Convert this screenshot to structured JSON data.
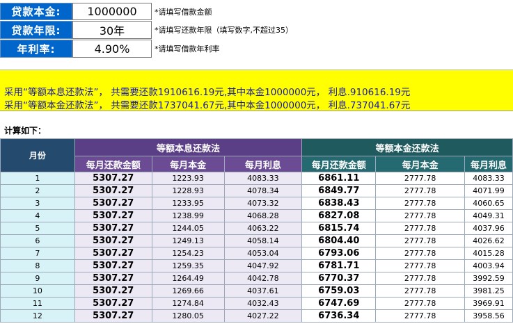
{
  "inputs": [
    {
      "label": "贷款本金:",
      "value": "1000000",
      "note": "*请填写借款金额"
    },
    {
      "label": "贷款年限:",
      "value": "30年",
      "note": "*请填写还款年限（填写数字,不超过35）"
    },
    {
      "label": "年利率:",
      "value": "4.90%",
      "note": "*请填写借款年利率"
    }
  ],
  "summary": [
    "采用“等额本息还款法”， 共需要还款1910616.19元,其中本金1000000元， 利息.910616.19元",
    "采用“等额本金还款法”， 共需要还款1737041.67元,其中本金1000000元， 利息.737041.67元"
  ],
  "calc_label": "计算如下：",
  "table": {
    "month_header": "月份",
    "group_a": "等额本息还款法",
    "group_b": "等额本金还款法",
    "sub_a": [
      "每月还款金额",
      "每月本金",
      "每月利息"
    ],
    "sub_b": [
      "每月还款金额",
      "每月本金",
      "每月利息"
    ],
    "rows": [
      [
        "1",
        "5307.27",
        "1223.93",
        "4083.33",
        "6861.11",
        "2777.78",
        "4083.33"
      ],
      [
        "2",
        "5307.27",
        "1228.93",
        "4078.34",
        "6849.77",
        "2777.78",
        "4071.99"
      ],
      [
        "3",
        "5307.27",
        "1233.95",
        "4073.32",
        "6838.43",
        "2777.78",
        "4060.65"
      ],
      [
        "4",
        "5307.27",
        "1238.99",
        "4068.28",
        "6827.08",
        "2777.78",
        "4049.31"
      ],
      [
        "5",
        "5307.27",
        "1244.05",
        "4063.22",
        "6815.74",
        "2777.78",
        "4037.96"
      ],
      [
        "6",
        "5307.27",
        "1249.13",
        "4058.14",
        "6804.40",
        "2777.78",
        "4026.62"
      ],
      [
        "7",
        "5307.27",
        "1254.23",
        "4053.04",
        "6793.06",
        "2777.78",
        "4015.28"
      ],
      [
        "8",
        "5307.27",
        "1259.35",
        "4047.92",
        "6781.71",
        "2777.78",
        "4003.94"
      ],
      [
        "9",
        "5307.27",
        "1264.49",
        "4042.78",
        "6770.37",
        "2777.78",
        "3992.59"
      ],
      [
        "10",
        "5307.27",
        "1269.66",
        "4037.61",
        "6759.03",
        "2777.78",
        "3981.25"
      ],
      [
        "11",
        "5307.27",
        "1274.84",
        "4032.43",
        "6747.69",
        "2777.78",
        "3969.91"
      ],
      [
        "12",
        "5307.27",
        "1280.05",
        "4027.22",
        "6736.34",
        "2777.78",
        "3958.56"
      ]
    ]
  }
}
